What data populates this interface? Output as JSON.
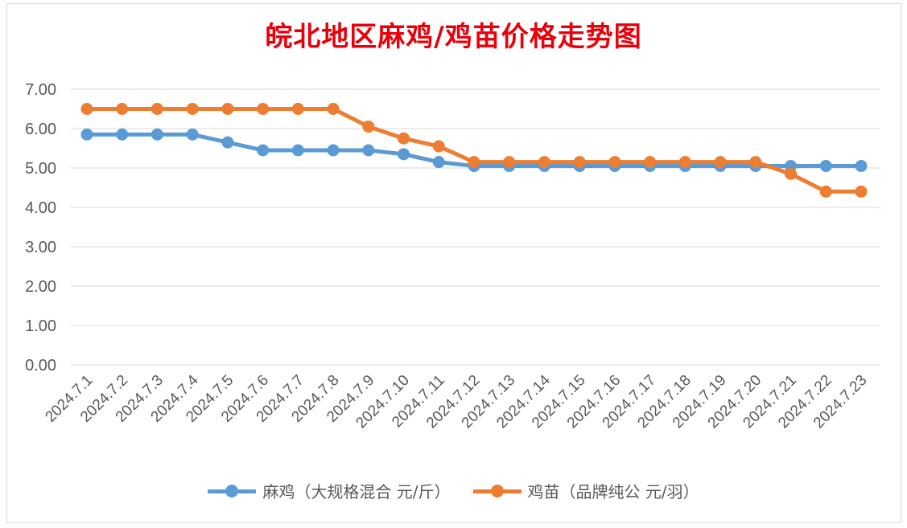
{
  "chart_data": {
    "type": "line",
    "title": "皖北地区麻鸡/鸡苗价格走势图",
    "categories": [
      "2024.7.1",
      "2024.7.2",
      "2024.7.3",
      "2024.7.4",
      "2024.7.5",
      "2024.7.6",
      "2024.7.7",
      "2024.7.8",
      "2024.7.9",
      "2024.7.10",
      "2024.7.11",
      "2024.7.12",
      "2024.7.13",
      "2024.7.14",
      "2024.7.15",
      "2024.7.16",
      "2024.7.17",
      "2024.7.18",
      "2024.7.19",
      "2024.7.20",
      "2024.7.21",
      "2024.7.22",
      "2024.7.23"
    ],
    "series": [
      {
        "name": "麻鸡（大规格混合 元/斤）",
        "color": "#5b9bd5",
        "values": [
          5.85,
          5.85,
          5.85,
          5.85,
          5.65,
          5.45,
          5.45,
          5.45,
          5.45,
          5.35,
          5.15,
          5.05,
          5.05,
          5.05,
          5.05,
          5.05,
          5.05,
          5.05,
          5.05,
          5.05,
          5.05,
          5.05,
          5.05
        ]
      },
      {
        "name": "鸡苗（品牌纯公 元/羽）",
        "color": "#ed7d31",
        "values": [
          6.5,
          6.5,
          6.5,
          6.5,
          6.5,
          6.5,
          6.5,
          6.5,
          6.05,
          5.75,
          5.55,
          5.15,
          5.15,
          5.15,
          5.15,
          5.15,
          5.15,
          5.15,
          5.15,
          5.15,
          4.85,
          4.4,
          4.4
        ]
      }
    ],
    "yticks": [
      "0.00",
      "1.00",
      "2.00",
      "3.00",
      "4.00",
      "5.00",
      "6.00",
      "7.00"
    ],
    "ylim": [
      0,
      7
    ],
    "grid": true,
    "legend": "bottom"
  }
}
